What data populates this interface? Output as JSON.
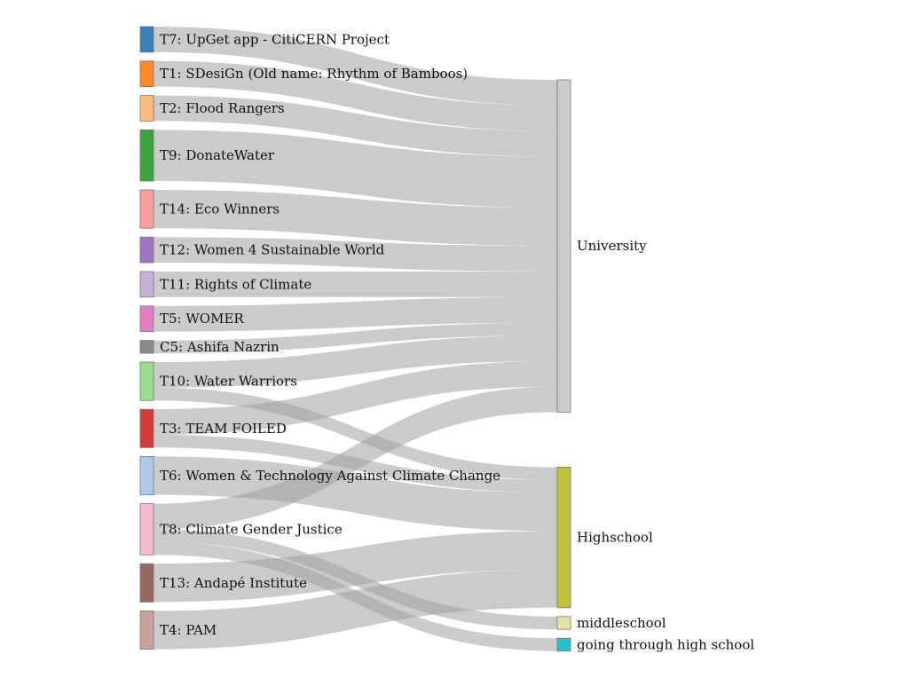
{
  "chart_data": {
    "type": "sankey",
    "title": "",
    "source_nodes": [
      {
        "name": "T7: UpGet app - CitiCERN Project",
        "color": "#3a7fba"
      },
      {
        "name": "T1: SDesiGn (Old name: Rhythm of Bamboos)",
        "color": "#fd8a25"
      },
      {
        "name": "T2: Flood Rangers",
        "color": "#fdbb7d"
      },
      {
        "name": "T9: DonateWater",
        "color": "#3da23d"
      },
      {
        "name": "T14: Eco Winners",
        "color": "#fb9d9b"
      },
      {
        "name": "T12: Women 4 Sustainable World",
        "color": "#9d76bf"
      },
      {
        "name": "T11: Rights of Climate",
        "color": "#c6b1d6"
      },
      {
        "name": "T5: WOMER",
        "color": "#e07fc3"
      },
      {
        "name": "C5: Ashifa Nazrin",
        "color": "#8a8a8a"
      },
      {
        "name": "T10: Water Warriors",
        "color": "#9cdc8f"
      },
      {
        "name": "T3: TEAM FOILED",
        "color": "#d43c3c"
      },
      {
        "name": "T6: Women & Technology Against Climate Change",
        "color": "#b0c9e9"
      },
      {
        "name": "T8: Climate Gender Justice",
        "color": "#f4b9d3"
      },
      {
        "name": "T13: Andapé Institute",
        "color": "#966861"
      },
      {
        "name": "T4: PAM",
        "color": "#c8a29b"
      }
    ],
    "target_nodes": [
      {
        "name": "University",
        "color": "#cccccc"
      },
      {
        "name": "Highschool",
        "color": "#c0c03b"
      },
      {
        "name": "middleschool",
        "color": "#e3e4a3"
      },
      {
        "name": "going through high school",
        "color": "#27c0d2"
      }
    ],
    "links": [
      {
        "source": "T7: UpGet app - CitiCERN Project",
        "target": "University",
        "value": 2
      },
      {
        "source": "T1: SDesiGn (Old name: Rhythm of Bamboos)",
        "target": "University",
        "value": 2
      },
      {
        "source": "T2: Flood Rangers",
        "target": "University",
        "value": 2
      },
      {
        "source": "T9: DonateWater",
        "target": "University",
        "value": 4
      },
      {
        "source": "T14: Eco Winners",
        "target": "University",
        "value": 3
      },
      {
        "source": "T12: Women 4 Sustainable World",
        "target": "University",
        "value": 2
      },
      {
        "source": "T11: Rights of Climate",
        "target": "University",
        "value": 2
      },
      {
        "source": "T5: WOMER",
        "target": "University",
        "value": 2
      },
      {
        "source": "C5: Ashifa Nazrin",
        "target": "University",
        "value": 1
      },
      {
        "source": "T10: Water Warriors",
        "target": "University",
        "value": 2
      },
      {
        "source": "T10: Water Warriors",
        "target": "Highschool",
        "value": 1
      },
      {
        "source": "T3: TEAM FOILED",
        "target": "University",
        "value": 2
      },
      {
        "source": "T3: TEAM FOILED",
        "target": "Highschool",
        "value": 1
      },
      {
        "source": "T6: Women & Technology Against Climate Change",
        "target": "Highschool",
        "value": 3
      },
      {
        "source": "T8: Climate Gender Justice",
        "target": "University",
        "value": 2
      },
      {
        "source": "T8: Climate Gender Justice",
        "target": "middleschool",
        "value": 1
      },
      {
        "source": "T8: Climate Gender Justice",
        "target": "going through high school",
        "value": 1
      },
      {
        "source": "T13: Andapé Institute",
        "target": "Highschool",
        "value": 3
      },
      {
        "source": "T4: PAM",
        "target": "Highschool",
        "value": 3
      }
    ]
  }
}
